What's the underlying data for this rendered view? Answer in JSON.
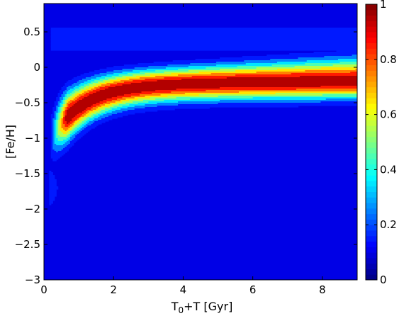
{
  "chart_data": {
    "type": "heatmap",
    "title": "",
    "xlabel": {
      "main": "T",
      "sub": "0",
      "rest": "+T [Gyr]"
    },
    "ylabel": "[Fe/H]",
    "xlim": [
      0,
      9
    ],
    "ylim": [
      -3,
      0.9
    ],
    "x_ticks": [
      {
        "value": 0,
        "label": "0"
      },
      {
        "value": 2,
        "label": "2"
      },
      {
        "value": 4,
        "label": "4"
      },
      {
        "value": 6,
        "label": "6"
      },
      {
        "value": 8,
        "label": "8"
      }
    ],
    "y_ticks": [
      {
        "value": 0.5,
        "label": "0.5"
      },
      {
        "value": 0,
        "label": "0"
      },
      {
        "value": -0.5,
        "label": "−0.5"
      },
      {
        "value": -1,
        "label": "−1"
      },
      {
        "value": -1.5,
        "label": "−1.5"
      },
      {
        "value": -2,
        "label": "−2"
      },
      {
        "value": -2.5,
        "label": "−2.5"
      },
      {
        "value": -3,
        "label": "−3"
      }
    ],
    "colorbar": {
      "min": 0,
      "max": 1,
      "colormap": "jet",
      "ticks": [
        {
          "value": 0,
          "label": "0"
        },
        {
          "value": 0.2,
          "label": "0.2"
        },
        {
          "value": 0.4,
          "label": "0.4"
        },
        {
          "value": 0.6,
          "label": "0.6"
        },
        {
          "value": 0.8,
          "label": "0.8"
        },
        {
          "value": 1,
          "label": "1"
        }
      ]
    },
    "contour_levels": [
      0.1,
      0.2,
      0.3,
      0.4,
      0.5,
      0.6,
      0.7,
      0.8,
      0.9
    ],
    "colors": {
      "background": "#0000cc",
      "low": "#0000b0",
      "high": "#800000"
    }
  }
}
